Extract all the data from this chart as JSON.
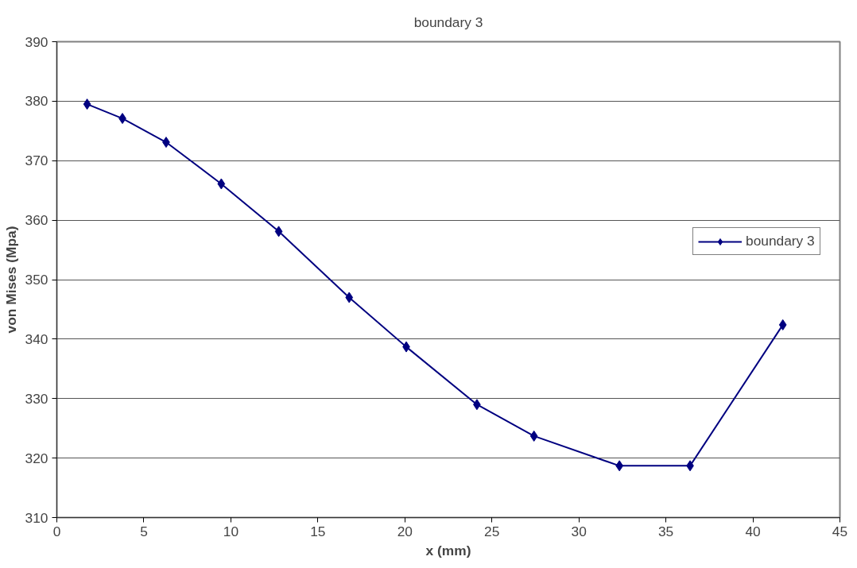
{
  "chart_data": {
    "type": "line",
    "title": "boundary 3",
    "xlabel": "x (mm)",
    "ylabel": "von Mises (Mpa)",
    "series": [
      {
        "name": "boundary 3",
        "color": "#000080",
        "x": [
          1.74,
          3.77,
          6.28,
          9.45,
          12.75,
          16.8,
          20.08,
          24.14,
          27.42,
          32.33,
          36.39,
          41.72
        ],
        "values": [
          379.5,
          377.1,
          373.1,
          366.1,
          358.1,
          347.0,
          338.7,
          329.0,
          323.7,
          318.7,
          318.7,
          342.4
        ]
      }
    ],
    "xlim": [
      0,
      45
    ],
    "xticks": [
      0,
      5,
      10,
      15,
      20,
      25,
      30,
      35,
      40,
      45
    ],
    "ylim": [
      310,
      390
    ],
    "yticks": [
      310,
      320,
      330,
      340,
      350,
      360,
      370,
      380,
      390
    ],
    "grid": "y",
    "legend": "right",
    "marker": "diamond",
    "line_style": "solid"
  }
}
